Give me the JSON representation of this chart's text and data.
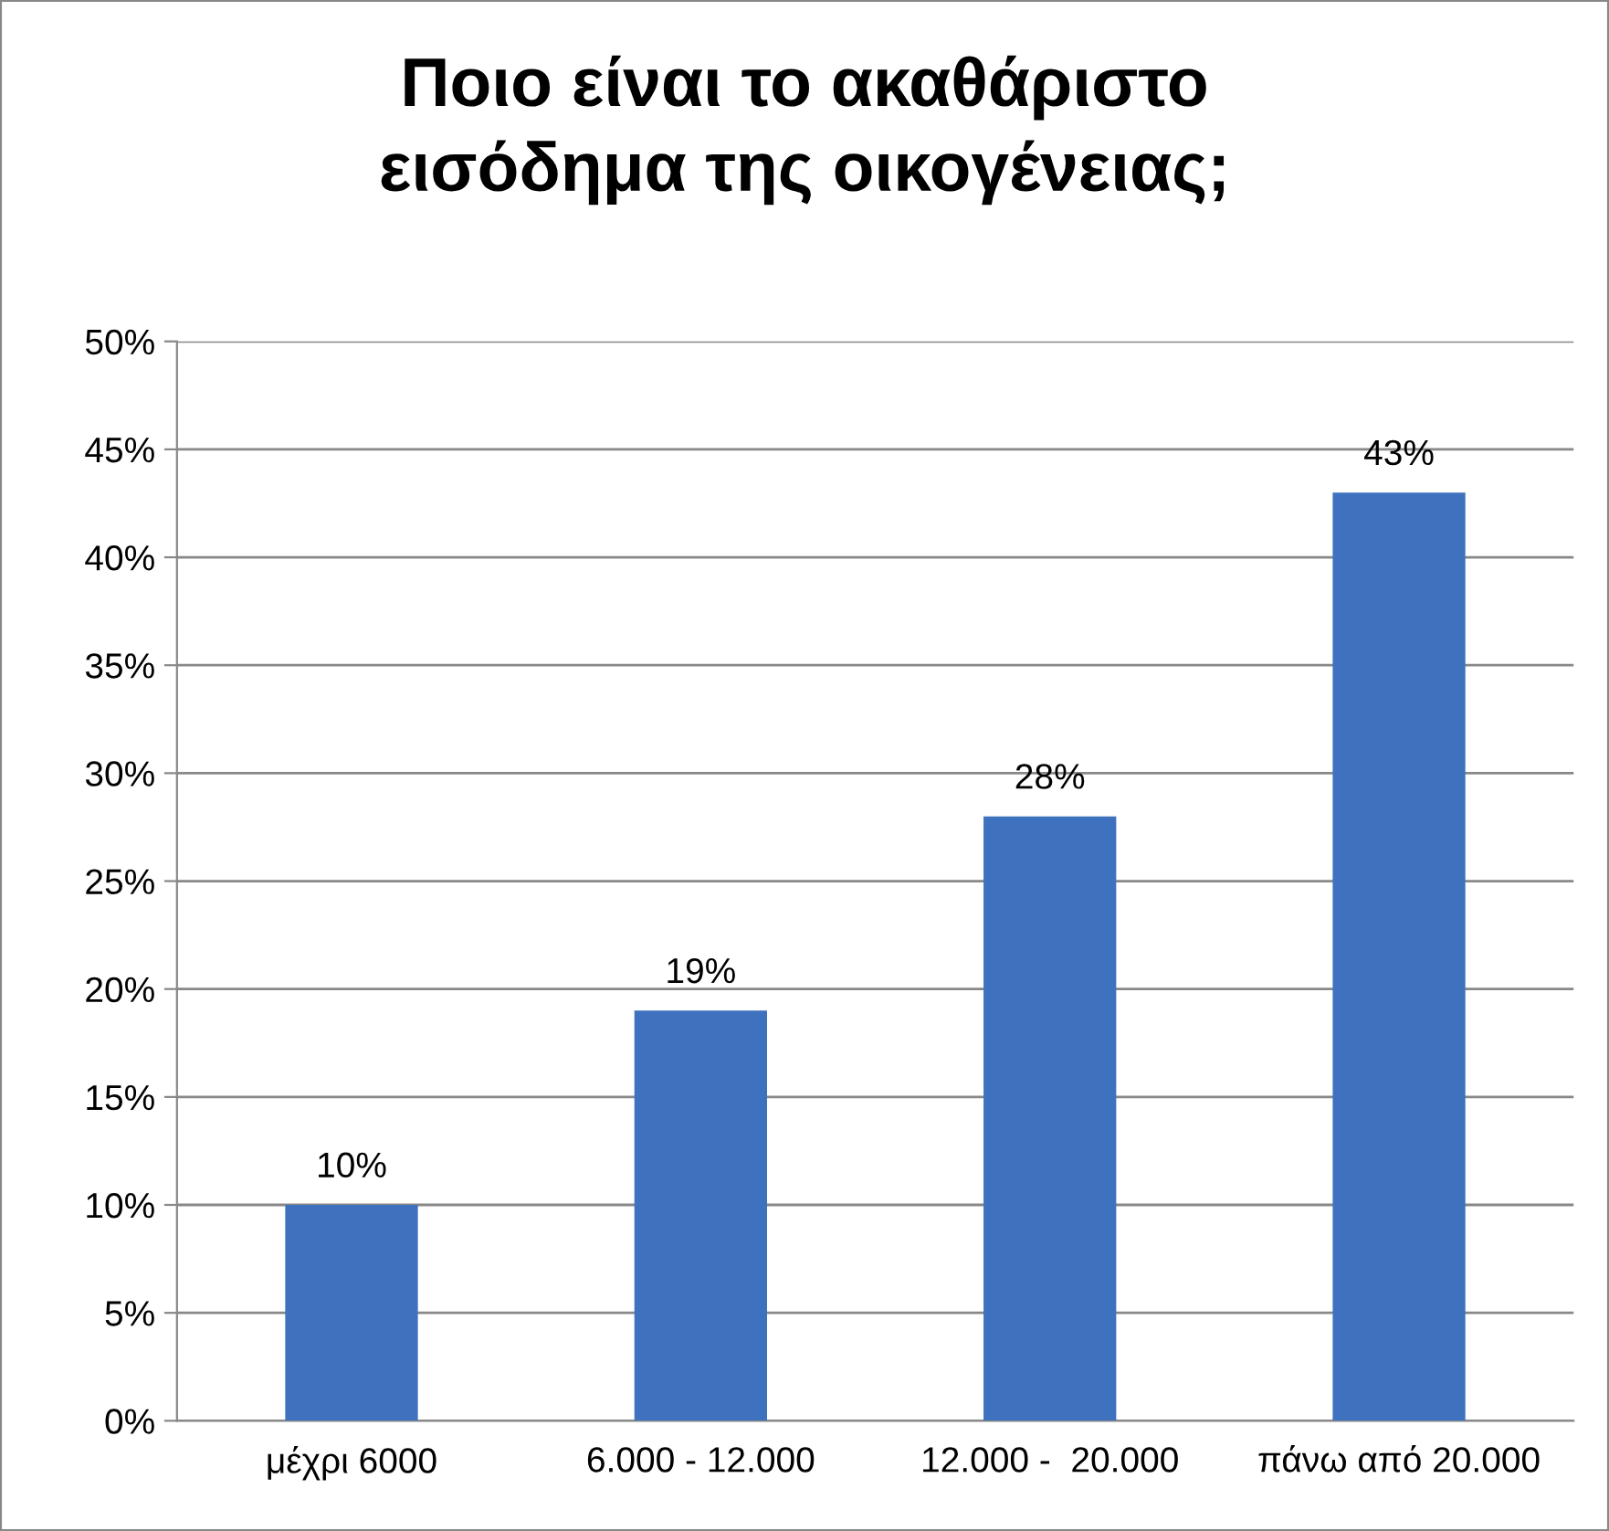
{
  "chart_data": {
    "type": "bar",
    "title": "Ποιο είναι το ακαθάριστο\nεισόδημα της οικογένειας;",
    "categories": [
      "μέχρι 6000",
      "6.000 - 12.000",
      "12.000 -  20.000",
      "πάνω από 20.000"
    ],
    "values": [
      10,
      19,
      28,
      43
    ],
    "color": "#3e72be",
    "value_labels": [
      "10%",
      "19%",
      "28%",
      "43%"
    ],
    "ylim": [
      0,
      50
    ],
    "yticks": [
      {
        "value": 0,
        "label": "0%"
      },
      {
        "value": 5,
        "label": "5%"
      },
      {
        "value": 10,
        "label": "10%"
      },
      {
        "value": 15,
        "label": "15%"
      },
      {
        "value": 20,
        "label": "20%"
      },
      {
        "value": 25,
        "label": "25%"
      },
      {
        "value": 30,
        "label": "30%"
      },
      {
        "value": 35,
        "label": "35%"
      },
      {
        "value": 40,
        "label": "40%"
      },
      {
        "value": 45,
        "label": "45%"
      },
      {
        "value": 50,
        "label": "50%"
      }
    ],
    "grid": "y"
  }
}
